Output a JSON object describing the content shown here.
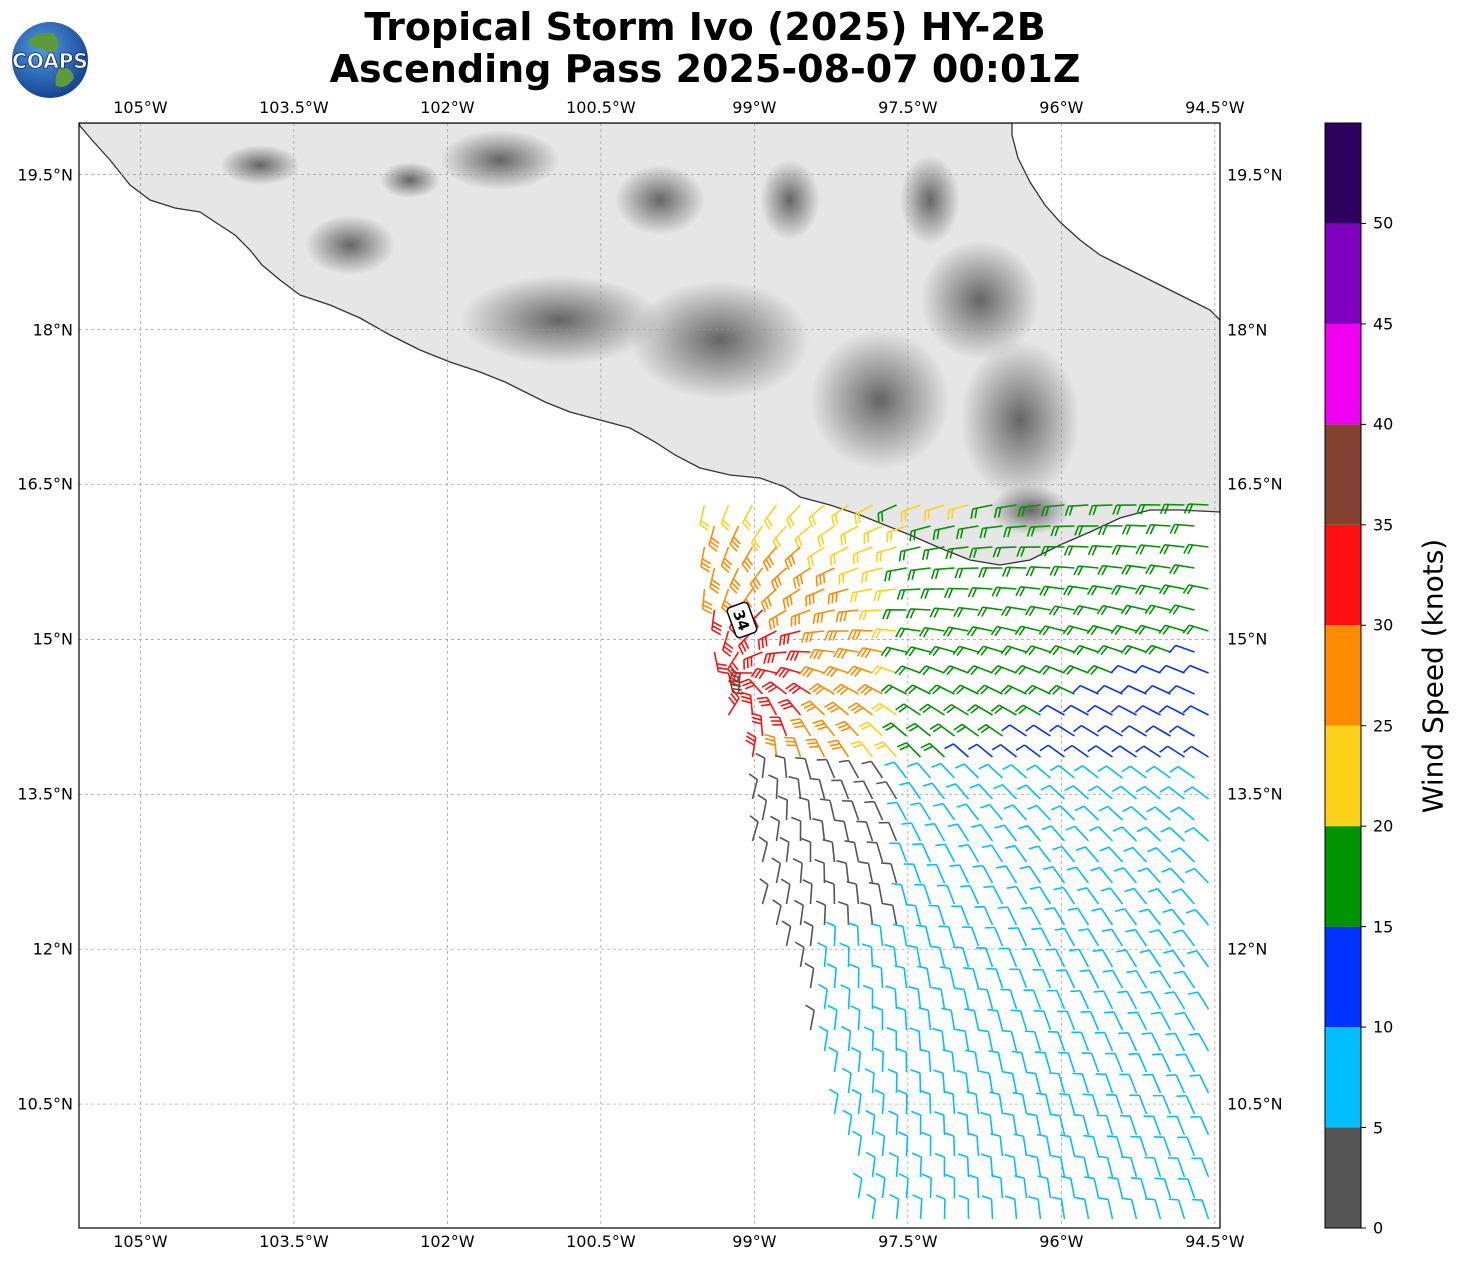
{
  "title_line1": "Tropical Storm Ivo (2025) HY-2B",
  "title_line2": "Ascending Pass 2025-08-07 00:01Z",
  "logo_text": "COAPS",
  "map": {
    "lon_ticks": [
      "105°W",
      "103.5°W",
      "102°W",
      "100.5°W",
      "99°W",
      "97.5°W",
      "96°W",
      "94.5°W"
    ],
    "lat_ticks": [
      "19.5°N",
      "18°N",
      "16.5°N",
      "15°N",
      "13.5°N",
      "12°N",
      "10.5°N"
    ],
    "lon_range": [
      -105.6,
      -94.45
    ],
    "lat_range": [
      9.3,
      20.0
    ],
    "land_shading": "grayscale topography",
    "gridlines": true,
    "storm_marker": "34"
  },
  "colorbar": {
    "label": "Wind Speed (knots)",
    "ticks": [
      "0",
      "5",
      "10",
      "15",
      "20",
      "25",
      "30",
      "35",
      "40",
      "45",
      "50"
    ],
    "bins": [
      {
        "min": 0,
        "max": 5,
        "color": "#555555"
      },
      {
        "min": 5,
        "max": 10,
        "color": "#00bfff"
      },
      {
        "min": 10,
        "max": 15,
        "color": "#0033ff"
      },
      {
        "min": 15,
        "max": 20,
        "color": "#009400"
      },
      {
        "min": 20,
        "max": 25,
        "color": "#ffd21a"
      },
      {
        "min": 25,
        "max": 30,
        "color": "#ff8c00"
      },
      {
        "min": 30,
        "max": 35,
        "color": "#ff1010"
      },
      {
        "min": 35,
        "max": 40,
        "color": "#834130"
      },
      {
        "min": 40,
        "max": 45,
        "color": "#f000f0"
      },
      {
        "min": 45,
        "max": 50,
        "color": "#8000c0"
      },
      {
        "min": 50,
        "max": 55,
        "color": "#2d0060"
      }
    ]
  }
}
